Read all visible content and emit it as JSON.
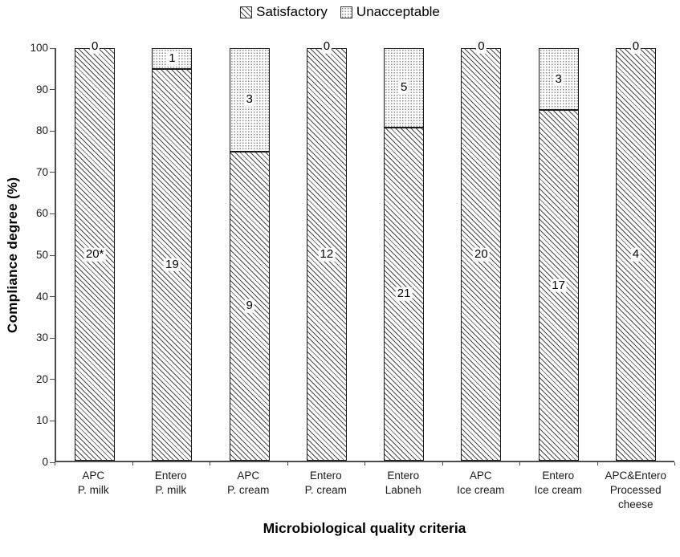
{
  "legend": {
    "items": [
      {
        "label": "Satisfactory",
        "pattern": "hatch"
      },
      {
        "label": "Unacceptable",
        "pattern": "dots"
      }
    ]
  },
  "axes": {
    "y_title": "Compliance degree (%)",
    "x_title": "Microbiological quality criteria",
    "y_ticks": [
      0,
      10,
      20,
      30,
      40,
      50,
      60,
      70,
      80,
      90,
      100
    ]
  },
  "chart_data": {
    "type": "bar",
    "stacked": true,
    "title": "",
    "xlabel": "Microbiological quality criteria",
    "ylabel": "Compliance degree (%)",
    "ylim": [
      0,
      100
    ],
    "grid": false,
    "legend_position": "top",
    "categories": [
      "APC\nP. milk",
      "Entero\nP. milk",
      "APC\nP. cream",
      "Entero\nP. cream",
      "Entero\nLabneh",
      "APC\nIce cream",
      "Entero\nIce cream",
      "APC&Entero\nProcessed\ncheese"
    ],
    "series": [
      {
        "name": "Satisfactory",
        "pattern": "hatch",
        "percent": [
          100,
          95,
          75,
          100,
          80.8,
          100,
          85,
          100
        ],
        "count_labels": [
          "20*",
          "19",
          "9",
          "12",
          "21",
          "20",
          "17",
          "4"
        ]
      },
      {
        "name": "Unacceptable",
        "pattern": "dots",
        "percent": [
          0,
          5,
          25,
          0,
          19.2,
          0,
          15,
          0
        ],
        "count_labels": [
          "0",
          "1",
          "3",
          "0",
          "5",
          "0",
          "3",
          "0"
        ]
      }
    ]
  },
  "colors": {
    "axis": "#4d4d4d",
    "text": "#000000",
    "hatch_line": "#4a4a4a",
    "dot": "#8a8a8a",
    "bar_border": "#1a1a1a"
  }
}
